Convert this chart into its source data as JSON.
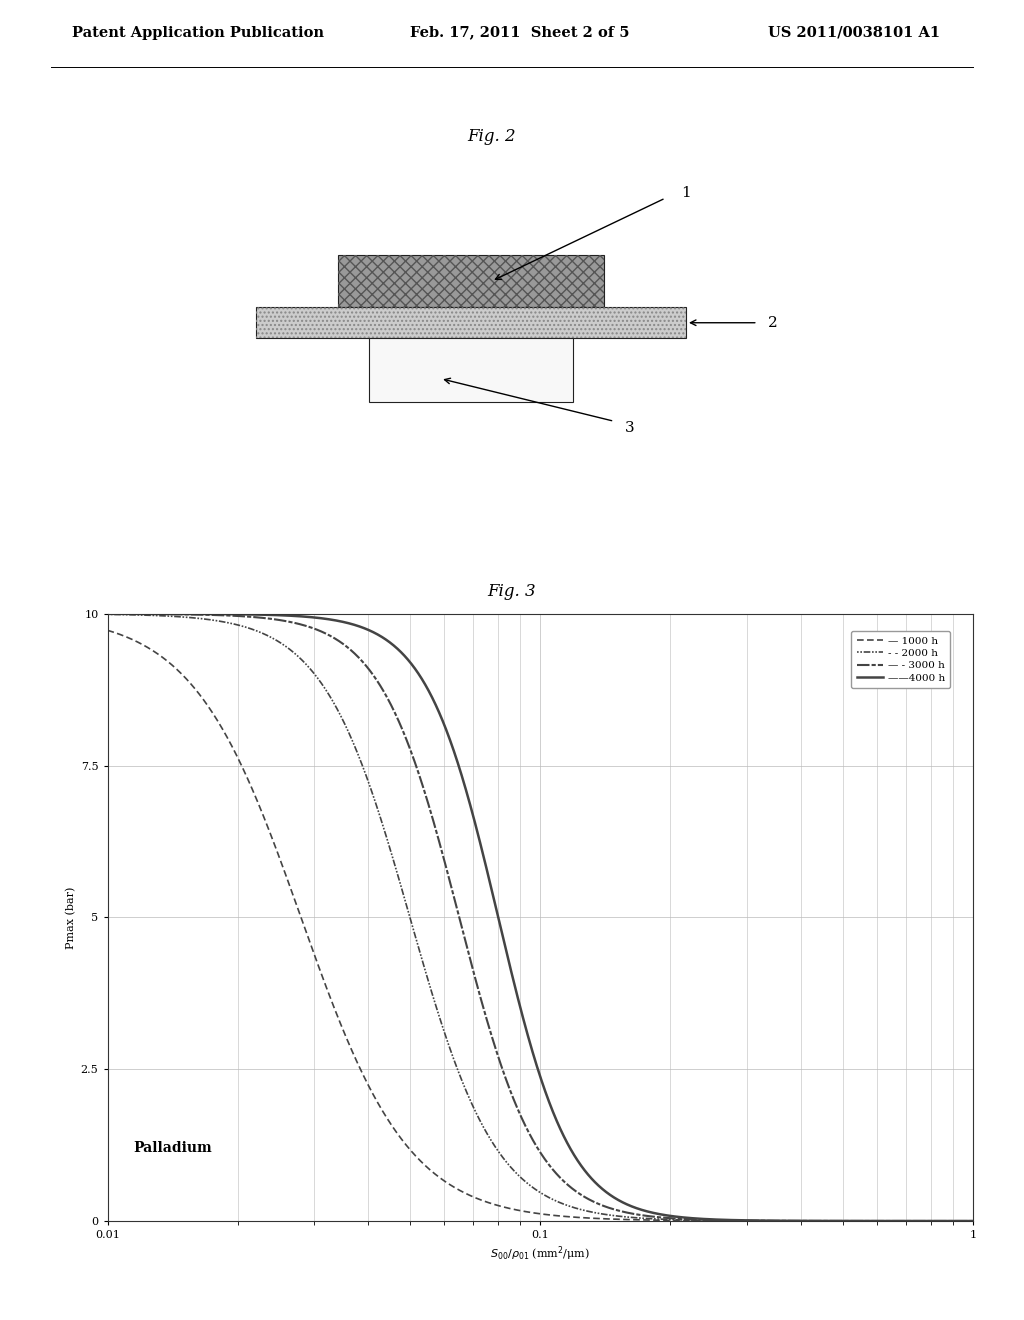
{
  "header_left": "Patent Application Publication",
  "header_mid": "Feb. 17, 2011  Sheet 2 of 5",
  "header_right": "US 2011/0038101 A1",
  "fig2_label": "Fig. 2",
  "fig3_label": "Fig. 3",
  "palladium_text": "Palladium",
  "legend_labels": [
    "1000 h",
    "2000 h",
    "3000 h",
    "4000 h"
  ],
  "ylabel": "Pmax (bar)",
  "xmin": 0.01,
  "xmax": 1.0,
  "ymin": 0,
  "ymax": 10,
  "yticks": [
    0,
    2.5,
    5,
    7.5,
    10
  ],
  "grid_color": "#bbbbbb",
  "curve_color": "#444444",
  "bg_color": "#ffffff",
  "curves": [
    {
      "label": "1000 h",
      "x_mid": 0.028,
      "steepness": 8.0
    },
    {
      "label": "2000 h",
      "x_mid": 0.05,
      "steepness": 10.0
    },
    {
      "label": "3000 h",
      "x_mid": 0.065,
      "steepness": 11.0
    },
    {
      "label": "4000 h",
      "x_mid": 0.08,
      "steepness": 12.0
    }
  ]
}
